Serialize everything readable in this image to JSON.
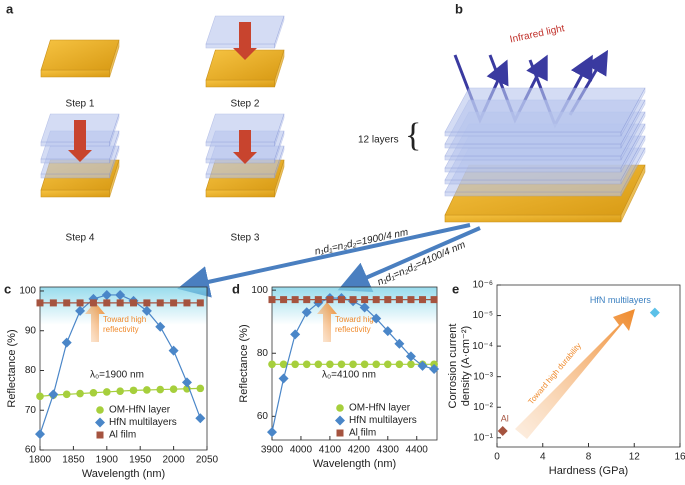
{
  "panel_labels": [
    "a",
    "b",
    "c",
    "d",
    "e"
  ],
  "diagram": {
    "steps": [
      "Step 1",
      "Step 2",
      "Step 4",
      "Step 3"
    ],
    "infrared": "Infrared light",
    "layers": "12 layers",
    "formula_1": "n₁d₁=n₂d₂=1900/4 nm",
    "formula_2": "n₁d₁=n₂d₂=4100/4 nm"
  },
  "chart_data": [
    {
      "type": "line",
      "x": [
        1800,
        1820,
        1840,
        1860,
        1880,
        1900,
        1920,
        1940,
        1960,
        1980,
        2000,
        2020,
        2040
      ],
      "series": [
        {
          "name": "OM-HfN layer",
          "color": "#a6cf3c",
          "marker": "circle",
          "values": [
            73.5,
            73.8,
            74,
            74.2,
            74.4,
            74.6,
            74.8,
            75,
            75.1,
            75.2,
            75.3,
            75.4,
            75.5
          ]
        },
        {
          "name": "HfN multilayers",
          "color": "#4a86c8",
          "marker": "diamond",
          "values": [
            64,
            74,
            87,
            95,
            98,
            99,
            99,
            97.5,
            95,
            91,
            85,
            77,
            68
          ]
        },
        {
          "name": "Al film",
          "color": "#a5533f",
          "marker": "square",
          "values": [
            97,
            97,
            97,
            97,
            97,
            97,
            97,
            97,
            97,
            97,
            97,
            97,
            97
          ]
        }
      ],
      "xlim": [
        1800,
        2050
      ],
      "xticks": [
        1800,
        1850,
        1900,
        1950,
        2000,
        2050
      ],
      "ylim": [
        60,
        101
      ],
      "yticks": [
        60,
        70,
        80,
        90,
        100
      ],
      "xlabel": "Wavelength (nm)",
      "ylabel": "Reflectance (%)",
      "note": [
        "Toward high",
        "reflectivity"
      ],
      "lambda": "λ₀=1900 nm"
    },
    {
      "type": "line",
      "x": [
        3900,
        3940,
        3980,
        4020,
        4060,
        4100,
        4140,
        4180,
        4220,
        4260,
        4300,
        4340,
        4380,
        4420,
        4460
      ],
      "series": [
        {
          "name": "OM-HfN layer",
          "color": "#a6cf3c",
          "marker": "circle",
          "values": [
            76.5,
            76.5,
            76.5,
            76.5,
            76.5,
            76.5,
            76.5,
            76.5,
            76.5,
            76.5,
            76.5,
            76.5,
            76.5,
            76.5,
            76.5
          ]
        },
        {
          "name": "HfN multilayers",
          "color": "#4a86c8",
          "marker": "diamond",
          "values": [
            55,
            72,
            86,
            93,
            96,
            97.5,
            97.5,
            96.5,
            94.5,
            91,
            87,
            83,
            79,
            76,
            75
          ]
        },
        {
          "name": "Al film",
          "color": "#a5533f",
          "marker": "square",
          "values": [
            97,
            97,
            97,
            97,
            97,
            97,
            97,
            97,
            97,
            97,
            97,
            97,
            97,
            97,
            97
          ]
        }
      ],
      "xlim": [
        3900,
        4470
      ],
      "xticks": [
        3900,
        4000,
        4100,
        4200,
        4300,
        4400
      ],
      "ylim": [
        52.5,
        101
      ],
      "yticks": [
        60,
        80,
        100
      ],
      "xlabel": "Wavelength (nm)",
      "ylabel": "Reflectance (%)",
      "note": [
        "Toward high",
        "reflectivity"
      ],
      "lambda": "λ₀=4100 nm"
    },
    {
      "type": "scatter",
      "series": [
        {
          "name": "Al",
          "color": "#a5533f",
          "marker": "diamond",
          "x": [
            0.5
          ],
          "values": [
            0.06
          ]
        },
        {
          "name": "HfN multilayers",
          "color": "#5bc0e8",
          "marker": "diamond",
          "x": [
            13.8
          ],
          "values": [
            8e-06
          ]
        }
      ],
      "xlim": [
        0,
        16
      ],
      "xticks": [
        0,
        4,
        8,
        12,
        16
      ],
      "ylim": [
        1e-06,
        0.2
      ],
      "yscale": "log",
      "yinverted": true,
      "yticks": [
        {
          "value": 1e-06,
          "label": "10⁻⁶"
        },
        {
          "value": 1e-05,
          "label": "10⁻⁵"
        },
        {
          "value": 0.0001,
          "label": "10⁻⁴"
        },
        {
          "value": 0.001,
          "label": "10⁻³"
        },
        {
          "value": 0.01,
          "label": "10⁻²"
        },
        {
          "value": 0.1,
          "label": "10⁻¹"
        }
      ],
      "xlabel": "Hardness (GPa)",
      "ylabel": [
        "Corrosion current",
        "density (A·cm⁻²)"
      ],
      "note": "Toward high durability"
    }
  ]
}
